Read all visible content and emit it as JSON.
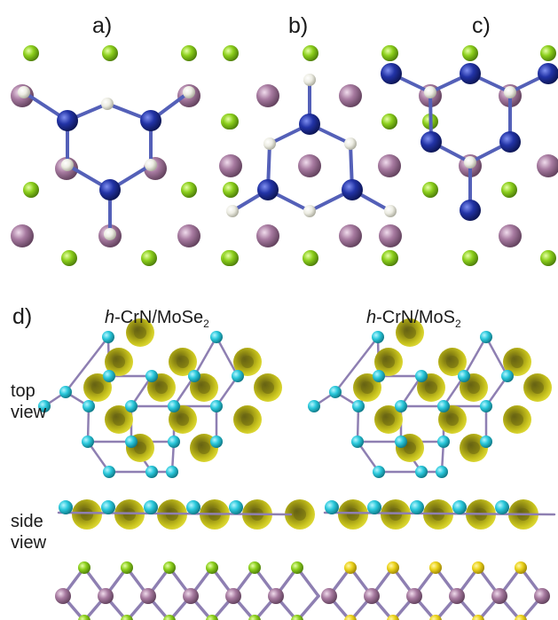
{
  "panel_labels": {
    "a": "a)",
    "b": "b)",
    "c": "c)",
    "d": "d)"
  },
  "titles": {
    "left": {
      "prefix": "h",
      "main": "-CrN/MoSe",
      "sub": "2"
    },
    "right": {
      "prefix": "h",
      "main": "-CrN/MoS",
      "sub": "2"
    }
  },
  "row_labels": {
    "top": [
      "top",
      "view"
    ],
    "side": [
      "side",
      "view"
    ]
  },
  "colors": {
    "green": "#8ccf1c",
    "mauve": "#a77aa0",
    "navy": "#2233a6",
    "white": "#f1f1ea",
    "cyan": "#2bc9dc",
    "olive": "#b9b516",
    "yellow": "#ecd31b",
    "bond": "#8e7fb2"
  }
}
